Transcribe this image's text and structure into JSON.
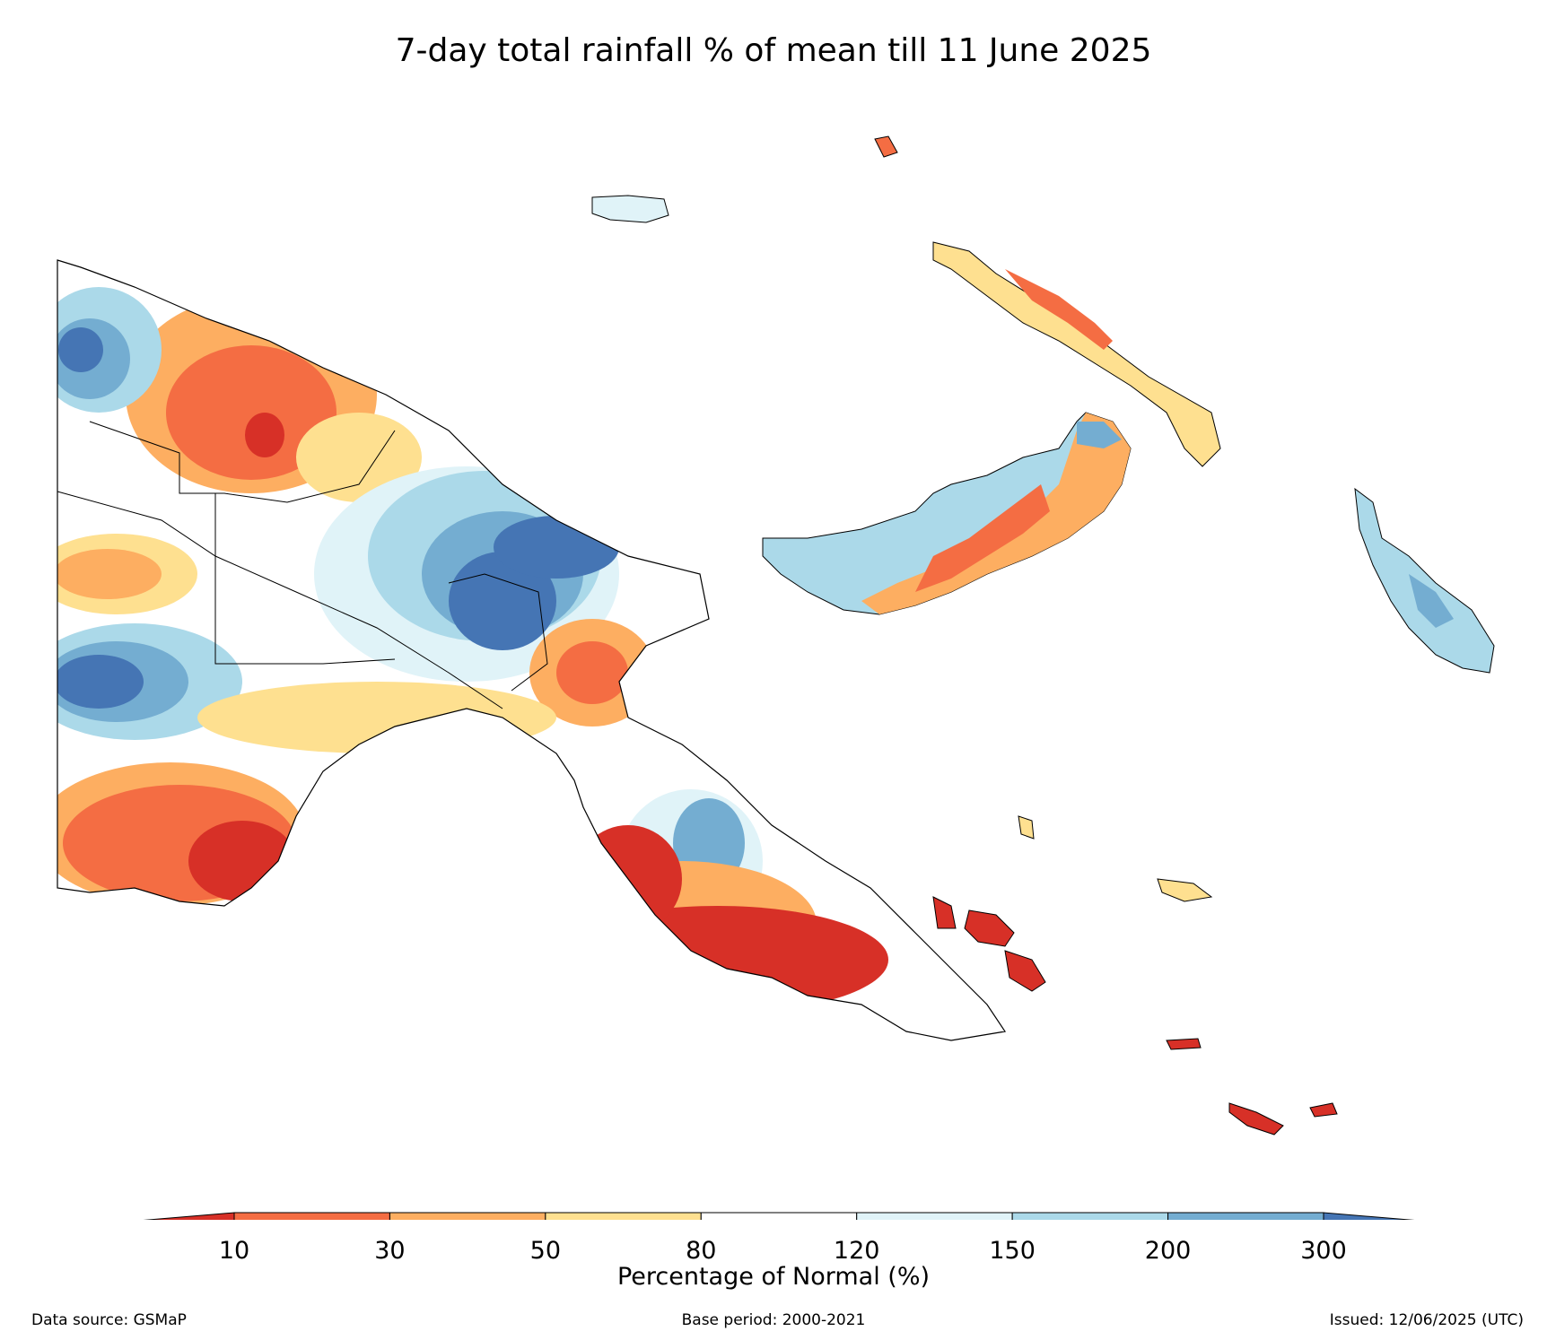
{
  "title": "7-day total rainfall % of mean till 11 June 2025",
  "colorbar": {
    "label": "Percentage of Normal (%)",
    "ticks": [
      "10",
      "30",
      "50",
      "80",
      "120",
      "150",
      "200",
      "300"
    ],
    "colors": [
      "#d73027",
      "#f46d43",
      "#fdae61",
      "#fee090",
      "#ffffff",
      "#e0f3f8",
      "#abd9e9",
      "#74add1",
      "#4575b4"
    ],
    "extend": "both"
  },
  "footer": {
    "source": "Data source: GSMaP",
    "base_period": "Base period: 2000-2021",
    "issued": "Issued: 12/06/2025 (UTC)"
  },
  "map": {
    "region": "Papua New Guinea",
    "variable": "rainfall percentage of mean"
  }
}
